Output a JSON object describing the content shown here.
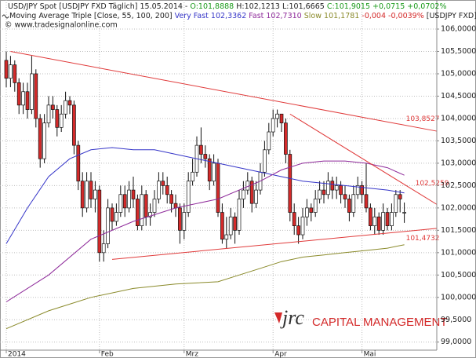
{
  "chart_data": {
    "type": "candlestick",
    "header": {
      "title": "USD/JPY Spot [USDJPY FXD  Täglich] 15.05.2014 -",
      "open_label": "O:101,8888",
      "high_label": "H:102,1213",
      "low_label": "L:101,6665",
      "close_label": "C:101,9015",
      "change_label": "+0,0715 +0,0702%",
      "indicator": "Moving Average Triple [Close, 55, 100, 200]",
      "very_fast": "Very Fast 102,3362",
      "fast": "Fast 102,7310",
      "slow": "Slow 101,1781",
      "indicator_change": "-0,004 -0,0039%",
      "indicator_symbol": "[USDJPY FXD]",
      "copyright": "© www.tradesignalonline.com"
    },
    "logo": {
      "brand": "jrc",
      "tagline": "CAPITAL MANAGEMENT"
    },
    "categories": [
      "2014",
      null,
      null,
      null,
      null,
      null,
      null,
      null,
      null,
      null,
      null,
      null,
      null,
      null,
      null,
      null,
      null,
      null,
      null,
      null,
      null,
      null,
      "Feb",
      null,
      null,
      null,
      null,
      null,
      null,
      null,
      null,
      null,
      null,
      null,
      null,
      null,
      null,
      null,
      null,
      null,
      null,
      null,
      "Mrz",
      null,
      null,
      null,
      null,
      null,
      null,
      null,
      null,
      null,
      null,
      null,
      null,
      null,
      null,
      null,
      null,
      null,
      null,
      null,
      null,
      "Apr",
      null,
      null,
      null,
      null,
      null,
      null,
      null,
      null,
      null,
      null,
      null,
      null,
      null,
      null,
      null,
      null,
      null,
      null,
      null,
      null,
      "Mai",
      null,
      null,
      null,
      null,
      null,
      null,
      null,
      null,
      null,
      null
    ],
    "open": [
      105.3,
      104.9,
      105.2,
      104.8,
      104.3,
      104.6,
      104.2,
      105.0,
      104.0,
      103.1,
      103.9,
      104.3,
      104.2,
      103.8,
      104.1,
      104.4,
      104.3,
      103.4,
      102.6,
      102.0,
      102.6,
      102.2,
      102.4,
      101.0,
      101.2,
      102.0,
      101.7,
      101.9,
      102.3,
      102.0,
      102.4,
      102.2,
      101.6,
      102.3,
      101.8,
      101.9,
      102.2,
      102.6,
      102.5,
      102.3,
      102.1,
      102.0,
      101.5,
      101.9,
      102.6,
      102.8,
      103.4,
      103.2,
      103.1,
      102.6,
      103.0,
      101.9,
      101.3,
      101.4,
      101.8,
      101.5,
      102.2,
      102.4,
      102.6,
      102.1,
      102.4,
      102.8,
      103.3,
      103.7,
      104.0,
      104.1,
      103.9,
      103.2,
      101.9,
      101.6,
      101.4,
      101.8,
      102.0,
      101.9,
      102.2,
      102.4,
      102.3,
      102.6,
      102.4,
      102.5,
      102.3,
      102.2,
      101.9,
      102.3,
      102.5,
      102.3,
      102.0,
      101.6,
      101.8,
      101.5,
      101.9,
      101.6,
      101.9,
      102.3,
      101.8888
    ],
    "high": [
      105.5,
      105.4,
      105.3,
      104.9,
      104.8,
      104.8,
      105.4,
      105.1,
      104.1,
      104.1,
      104.5,
      104.5,
      104.3,
      104.3,
      104.6,
      104.5,
      104.4,
      103.5,
      102.8,
      102.8,
      102.8,
      102.6,
      102.5,
      101.5,
      102.2,
      102.1,
      102.1,
      102.5,
      102.5,
      102.6,
      102.7,
      102.3,
      102.5,
      102.4,
      102.1,
      102.4,
      102.8,
      102.8,
      102.7,
      102.4,
      102.3,
      102.1,
      102.1,
      102.8,
      103.1,
      103.6,
      103.8,
      103.4,
      103.2,
      103.2,
      103.1,
      102.1,
      101.8,
      102.0,
      101.9,
      102.4,
      102.6,
      102.8,
      102.7,
      102.6,
      103.0,
      103.5,
      103.9,
      104.2,
      104.2,
      104.1,
      104.0,
      103.3,
      102.1,
      101.8,
      102.0,
      102.2,
      102.1,
      102.4,
      102.6,
      102.6,
      102.8,
      102.7,
      102.7,
      102.6,
      102.5,
      102.3,
      102.5,
      102.7,
      102.6,
      103.0,
      102.1,
      102.0,
      101.9,
      102.1,
      102.0,
      102.1,
      102.4,
      102.4,
      102.1213
    ],
    "low": [
      104.7,
      104.7,
      104.6,
      104.1,
      104.1,
      104.0,
      104.1,
      103.8,
      102.9,
      103.0,
      103.8,
      104.0,
      103.6,
      103.7,
      104.0,
      104.1,
      103.2,
      102.4,
      101.8,
      101.9,
      102.0,
      101.9,
      100.8,
      100.8,
      101.1,
      101.5,
      101.6,
      101.8,
      101.8,
      101.9,
      102.0,
      101.5,
      101.5,
      101.6,
      101.6,
      101.8,
      102.1,
      102.3,
      102.1,
      101.9,
      101.8,
      101.2,
      101.3,
      101.8,
      102.5,
      102.7,
      103.0,
      102.9,
      102.4,
      102.5,
      101.8,
      101.2,
      101.1,
      101.3,
      101.2,
      101.4,
      102.0,
      102.3,
      101.9,
      102.0,
      102.3,
      102.7,
      103.2,
      103.6,
      103.8,
      103.7,
      103.0,
      101.7,
      101.4,
      101.2,
      101.3,
      101.6,
      101.7,
      101.8,
      102.1,
      102.1,
      102.2,
      102.2,
      102.2,
      102.1,
      102.0,
      101.7,
      101.8,
      102.2,
      102.1,
      101.9,
      101.5,
      101.4,
      101.4,
      101.4,
      101.5,
      101.5,
      101.8,
      101.9,
      101.6665
    ],
    "close": [
      104.9,
      105.2,
      104.8,
      104.3,
      104.6,
      104.2,
      105.0,
      104.0,
      103.1,
      103.9,
      104.3,
      104.2,
      103.8,
      104.1,
      104.4,
      104.3,
      103.4,
      102.6,
      102.0,
      102.6,
      102.2,
      102.4,
      101.0,
      101.2,
      102.0,
      101.7,
      101.9,
      102.3,
      102.0,
      102.4,
      102.2,
      101.6,
      102.3,
      101.8,
      101.9,
      102.2,
      102.6,
      102.5,
      102.3,
      102.1,
      102.0,
      101.5,
      101.9,
      102.6,
      102.8,
      103.4,
      103.2,
      103.1,
      102.6,
      103.0,
      101.9,
      101.3,
      101.4,
      101.8,
      101.5,
      102.2,
      102.4,
      102.6,
      102.1,
      102.4,
      102.8,
      103.3,
      103.7,
      104.0,
      104.1,
      103.9,
      103.2,
      101.9,
      101.6,
      101.4,
      101.8,
      102.0,
      101.9,
      102.2,
      102.4,
      102.3,
      102.6,
      102.4,
      102.5,
      102.3,
      102.2,
      101.9,
      102.3,
      102.5,
      102.3,
      102.0,
      101.6,
      101.8,
      101.5,
      101.9,
      101.6,
      101.9,
      102.3,
      102.2,
      101.9015
    ],
    "up_color": "#ffffff",
    "down_color": "#d42a2a",
    "moving_averages": [
      {
        "color": "#3535c8",
        "x": [
          0,
          5,
          10,
          15,
          20,
          25,
          30,
          35,
          40,
          45,
          50,
          55,
          60,
          65,
          70,
          75,
          80,
          85,
          90,
          94
        ],
        "values": [
          101.2,
          102.0,
          102.7,
          103.1,
          103.3,
          103.35,
          103.3,
          103.3,
          103.2,
          103.1,
          103.0,
          102.9,
          102.8,
          102.7,
          102.6,
          102.55,
          102.5,
          102.45,
          102.4,
          102.3362
        ]
      },
      {
        "color": "#8e2a9a",
        "x": [
          0,
          10,
          20,
          30,
          40,
          50,
          60,
          65,
          70,
          75,
          80,
          85,
          90,
          94
        ],
        "values": [
          99.9,
          100.5,
          101.3,
          101.7,
          102.0,
          102.2,
          102.6,
          102.85,
          103.0,
          103.05,
          103.05,
          103.0,
          102.9,
          102.731
        ]
      },
      {
        "color": "#8a8a2a",
        "x": [
          0,
          10,
          20,
          30,
          40,
          50,
          55,
          60,
          65,
          70,
          75,
          80,
          85,
          90,
          94
        ],
        "values": [
          99.3,
          99.7,
          100.0,
          100.2,
          100.3,
          100.35,
          100.5,
          100.65,
          100.8,
          100.9,
          100.95,
          101.0,
          101.05,
          101.1,
          101.1781
        ]
      }
    ],
    "trendlines": [
      {
        "color": "#e03a3a",
        "x": [
          1,
          94
        ],
        "values": [
          105.5,
          103.8527
        ],
        "value_labels": [
          null,
          "103,8527"
        ]
      },
      {
        "color": "#e03a3a",
        "x": [
          67,
          94
        ],
        "values": [
          104.1,
          102.5259
        ],
        "value_labels": [
          null,
          "102,5259"
        ]
      },
      {
        "color": "#e03a3a",
        "x": [
          25,
          94
        ],
        "values": [
          100.85,
          101.4732
        ],
        "value_labels": [
          null,
          "101,4732"
        ]
      }
    ],
    "ylim": [
      98.82,
      106.65
    ],
    "yticks": [
      {
        "value": 99,
        "label": "99,0000"
      },
      {
        "value": 99.5,
        "label": "99,5000"
      },
      {
        "value": 100,
        "label": "100,0000"
      },
      {
        "value": 100.5,
        "label": "100,5000"
      },
      {
        "value": 101,
        "label": "101,0000"
      },
      {
        "value": 101.5,
        "label": "101,5000"
      },
      {
        "value": 102,
        "label": "102,0000"
      },
      {
        "value": 102.5,
        "label": "102,5000"
      },
      {
        "value": 103,
        "label": "103,0000"
      },
      {
        "value": 103.5,
        "label": "103,5000"
      },
      {
        "value": 104,
        "label": "104,0000"
      },
      {
        "value": 104.5,
        "label": "104,5000"
      },
      {
        "value": 105,
        "label": "105,0000"
      },
      {
        "value": 105.5,
        "label": "105,5000"
      },
      {
        "value": 106,
        "label": "106,0000"
      }
    ],
    "grid": true
  }
}
